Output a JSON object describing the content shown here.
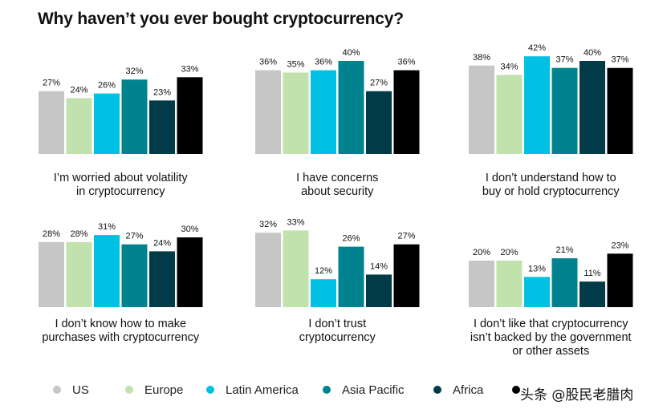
{
  "title": "Why haven’t you ever bought cryptocurrency?",
  "colors": [
    "#c6c6c6",
    "#c2e2ad",
    "#00c0e4",
    "#00838f",
    "#003b47",
    "#000000"
  ],
  "legend": [
    {
      "label": "US",
      "color": "#c6c6c6"
    },
    {
      "label": "Europe",
      "color": "#c2e2ad"
    },
    {
      "label": "Latin America",
      "color": "#00c0e4"
    },
    {
      "label": "Asia Pacific",
      "color": "#00838f"
    },
    {
      "label": "Africa",
      "color": "#003b47"
    },
    {
      "label": "",
      "color": "#000000"
    }
  ],
  "watermark": "头条 @股民老腊肉",
  "chart_data": [
    {
      "type": "bar",
      "title_lines": [
        "I’m worried about volatility",
        "in cryptocurrency"
      ],
      "categories": [
        "US",
        "Europe",
        "Latin America",
        "Asia Pacific",
        "Africa",
        ""
      ],
      "values": [
        27,
        24,
        26,
        32,
        23,
        33
      ],
      "labels": [
        "27%",
        "24%",
        "26%",
        "32%",
        "23%",
        "33%"
      ],
      "unit": "%"
    },
    {
      "type": "bar",
      "title_lines": [
        "I have concerns",
        "about security"
      ],
      "categories": [
        "US",
        "Europe",
        "Latin America",
        "Asia Pacific",
        "Africa",
        ""
      ],
      "values": [
        36,
        35,
        36,
        40,
        27,
        36
      ],
      "labels": [
        "36%",
        "35%",
        "36%",
        "40%",
        "27%",
        "36%"
      ],
      "unit": "%"
    },
    {
      "type": "bar",
      "title_lines": [
        "I don’t understand how to",
        "buy or hold cryptocurrency"
      ],
      "categories": [
        "US",
        "Europe",
        "Latin America",
        "Asia Pacific",
        "Africa",
        ""
      ],
      "values": [
        38,
        34,
        42,
        37,
        40,
        37
      ],
      "labels": [
        "38%",
        "34%",
        "42%",
        "37%",
        "40%",
        "37%"
      ],
      "unit": "%"
    },
    {
      "type": "bar",
      "title_lines": [
        "I don’t know how to make",
        "purchases with cryptocurrency"
      ],
      "categories": [
        "US",
        "Europe",
        "Latin America",
        "Asia Pacific",
        "Africa",
        ""
      ],
      "values": [
        28,
        28,
        31,
        27,
        24,
        30
      ],
      "labels": [
        "28%",
        "28%",
        "31%",
        "27%",
        "24%",
        "30%"
      ],
      "unit": "%"
    },
    {
      "type": "bar",
      "title_lines": [
        "I don’t trust",
        "cryptocurrency"
      ],
      "categories": [
        "US",
        "Europe",
        "Latin America",
        "Asia Pacific",
        "Africa",
        ""
      ],
      "values": [
        32,
        33,
        12,
        26,
        14,
        27
      ],
      "labels": [
        "32%",
        "33%",
        "12%",
        "26%",
        "14%",
        "27%"
      ],
      "unit": "%"
    },
    {
      "type": "bar",
      "title_lines": [
        "I don’t like that cryptocurrency",
        "isn’t backed by the government",
        "or other assets"
      ],
      "categories": [
        "US",
        "Europe",
        "Latin America",
        "Asia Pacific",
        "Africa",
        ""
      ],
      "values": [
        20,
        20,
        13,
        21,
        11,
        23
      ],
      "labels": [
        "20%",
        "20%",
        "13%",
        "21%",
        "11%",
        "23%"
      ],
      "unit": "%"
    }
  ]
}
